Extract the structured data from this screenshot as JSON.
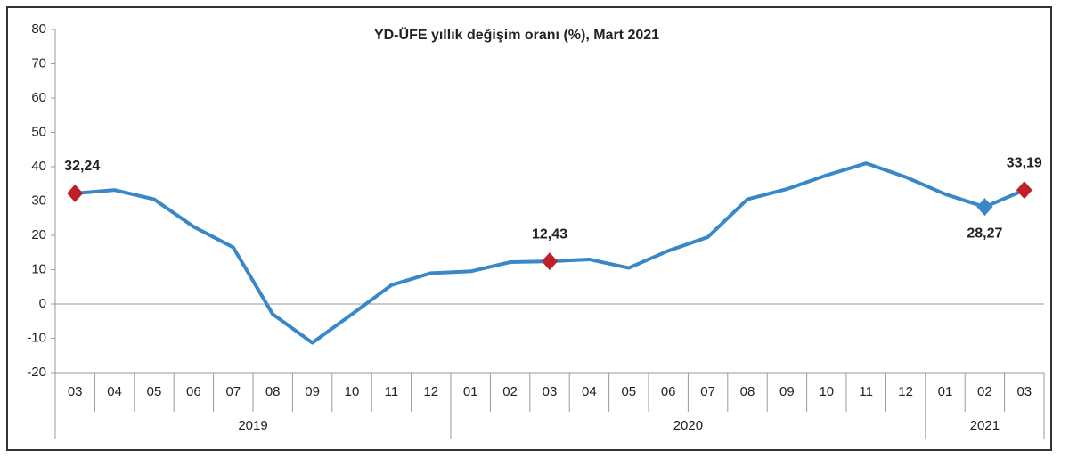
{
  "chart_data": {
    "type": "line",
    "title": "YD-ÜFE yıllık değişim oranı (%), Mart 2021",
    "category_groups": [
      {
        "label": "2019",
        "categories": [
          "03",
          "04",
          "05",
          "06",
          "07",
          "08",
          "09",
          "10",
          "11",
          "12"
        ]
      },
      {
        "label": "2020",
        "categories": [
          "01",
          "02",
          "03",
          "04",
          "05",
          "06",
          "07",
          "08",
          "09",
          "10",
          "11",
          "12"
        ]
      },
      {
        "label": "2021",
        "categories": [
          "01",
          "02",
          "03"
        ]
      }
    ],
    "series": [
      {
        "color": "#3a87c8",
        "values": [
          32.24,
          33.2,
          30.5,
          22.5,
          16.5,
          -3,
          -11.3,
          -3,
          5.5,
          9,
          9.5,
          12.2,
          12.43,
          13,
          10.5,
          15.5,
          19.5,
          30.5,
          33.5,
          37.5,
          41,
          37,
          32,
          28.27,
          33.19
        ],
        "value_labels": [
          "32,24",
          null,
          null,
          null,
          null,
          null,
          null,
          null,
          null,
          null,
          null,
          null,
          "12,43",
          null,
          null,
          null,
          null,
          null,
          null,
          null,
          null,
          null,
          null,
          "28,27",
          "33,19"
        ],
        "marker_colors": [
          "#c0202a",
          null,
          null,
          null,
          null,
          null,
          null,
          null,
          null,
          null,
          null,
          null,
          "#c0202a",
          null,
          null,
          null,
          null,
          null,
          null,
          null,
          null,
          null,
          null,
          "#3a87c8",
          "#c0202a"
        ]
      }
    ],
    "ylim": [
      -20,
      80
    ],
    "yticks": [
      -20,
      -10,
      0,
      10,
      20,
      30,
      40,
      50,
      60,
      70,
      80
    ],
    "grid": false
  }
}
